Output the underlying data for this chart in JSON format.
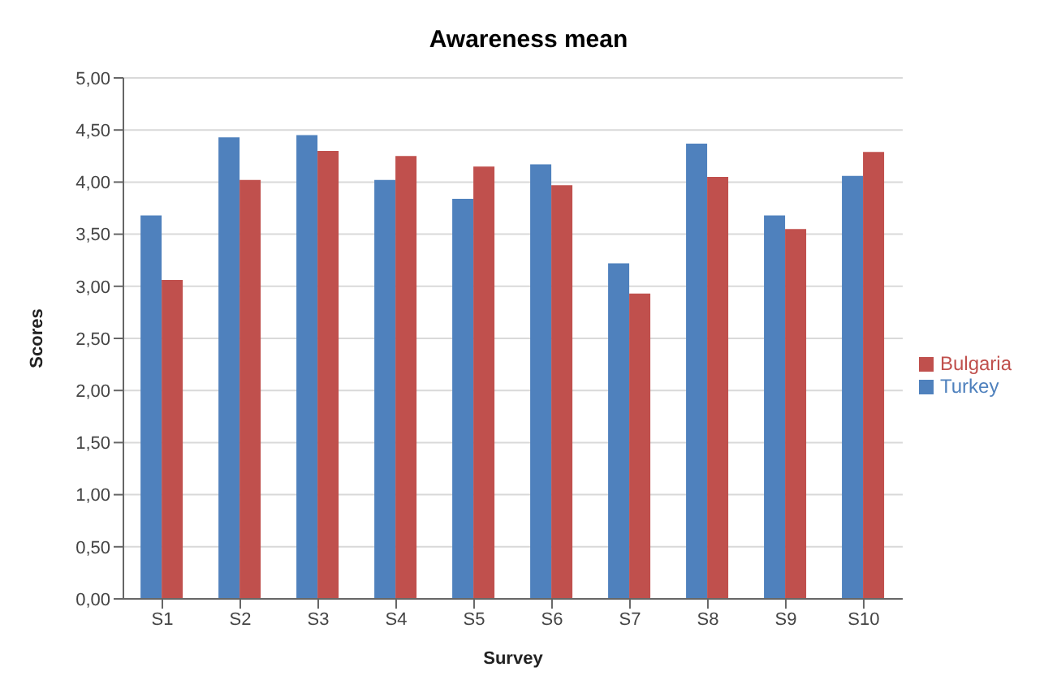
{
  "chart_data": {
    "type": "bar",
    "title": "Awareness mean",
    "xlabel": "Survey",
    "ylabel": "Scores",
    "categories": [
      "S1",
      "S2",
      "S3",
      "S4",
      "S5",
      "S6",
      "S7",
      "S8",
      "S9",
      "S10"
    ],
    "series": [
      {
        "name": "Turkey",
        "color": "#4f81bd",
        "values": [
          3.68,
          4.43,
          4.45,
          4.02,
          3.84,
          4.17,
          3.22,
          4.37,
          3.68,
          4.06
        ]
      },
      {
        "name": "Bulgaria",
        "color": "#c0504d",
        "values": [
          3.06,
          4.02,
          4.3,
          4.25,
          4.15,
          3.97,
          2.93,
          4.05,
          3.55,
          4.29
        ]
      }
    ],
    "ylim": [
      0,
      5
    ],
    "yticks": [
      {
        "value": 0,
        "label": "0,00"
      },
      {
        "value": 0.5,
        "label": "0,50"
      },
      {
        "value": 1,
        "label": "1,00"
      },
      {
        "value": 1.5,
        "label": "1,50"
      },
      {
        "value": 2,
        "label": "2,00"
      },
      {
        "value": 2.5,
        "label": "2,50"
      },
      {
        "value": 3,
        "label": "3,00"
      },
      {
        "value": 3.5,
        "label": "3,50"
      },
      {
        "value": 4,
        "label": "4,00"
      },
      {
        "value": 4.5,
        "label": "4,50"
      },
      {
        "value": 5,
        "label": "5,00"
      }
    ],
    "grid": "y",
    "legend": "right"
  }
}
